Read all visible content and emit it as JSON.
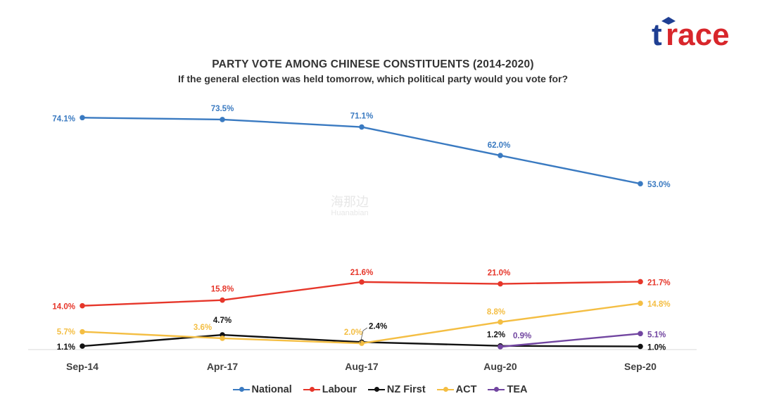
{
  "logo": {
    "text": "trace",
    "colors": {
      "blue": "#1f3f93",
      "red": "#d8262b"
    }
  },
  "watermark": {
    "cn": "海那边",
    "en": "Huanabian"
  },
  "chart_data": {
    "type": "line",
    "title": "PARTY VOTE AMONG CHINESE CONSTITUENTS (2014-2020)",
    "subtitle": "If the general election was held tomorrow, which political party would you vote for?",
    "categories": [
      "Sep-14",
      "Apr-17",
      "Aug-17",
      "Aug-20",
      "Sep-20"
    ],
    "ylim": [
      0,
      80
    ],
    "grid": false,
    "legend_position": "bottom",
    "series": [
      {
        "name": "National",
        "color": "#3a7ac1",
        "values": [
          74.1,
          73.5,
          71.1,
          62.0,
          53.0
        ],
        "labels": [
          "74.1%",
          "73.5%",
          "71.1%",
          "62.0%",
          "53.0%"
        ]
      },
      {
        "name": "Labour",
        "color": "#e6362a",
        "values": [
          14.0,
          15.8,
          21.6,
          21.0,
          21.7
        ],
        "labels": [
          "14.0%",
          "15.8%",
          "21.6%",
          "21.0%",
          "21.7%"
        ]
      },
      {
        "name": "NZ First",
        "color": "#111111",
        "values": [
          1.1,
          4.7,
          2.4,
          1.2,
          1.0
        ],
        "labels": [
          "1.1%",
          "4.7%",
          "2.4%",
          "1.2%",
          "1.0%"
        ]
      },
      {
        "name": "ACT",
        "color": "#f4be43",
        "values": [
          5.7,
          3.6,
          2.0,
          8.8,
          14.8
        ],
        "labels": [
          "5.7%",
          "3.6%",
          "2.0%",
          "8.8%",
          "14.8%"
        ]
      },
      {
        "name": "TEA",
        "color": "#7145a0",
        "values": [
          null,
          null,
          null,
          0.9,
          5.1
        ],
        "labels": [
          null,
          null,
          null,
          "0.9%",
          "5.1%"
        ]
      }
    ]
  }
}
